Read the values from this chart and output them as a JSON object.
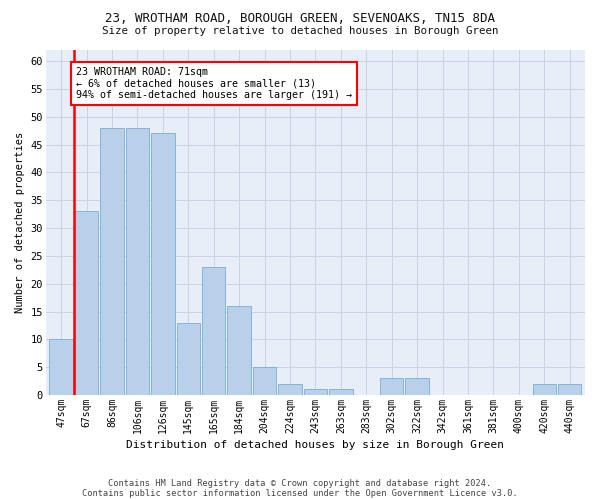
{
  "title": "23, WROTHAM ROAD, BOROUGH GREEN, SEVENOAKS, TN15 8DA",
  "subtitle": "Size of property relative to detached houses in Borough Green",
  "xlabel": "Distribution of detached houses by size in Borough Green",
  "ylabel": "Number of detached properties",
  "bar_color": "#b8d0ea",
  "bar_edge_color": "#7aaed4",
  "categories": [
    "47sqm",
    "67sqm",
    "86sqm",
    "106sqm",
    "126sqm",
    "145sqm",
    "165sqm",
    "184sqm",
    "204sqm",
    "224sqm",
    "243sqm",
    "263sqm",
    "283sqm",
    "302sqm",
    "322sqm",
    "342sqm",
    "361sqm",
    "381sqm",
    "400sqm",
    "420sqm",
    "440sqm"
  ],
  "values": [
    10,
    33,
    48,
    48,
    47,
    13,
    23,
    16,
    5,
    2,
    1,
    1,
    0,
    3,
    3,
    0,
    0,
    0,
    0,
    2,
    2
  ],
  "ylim": [
    0,
    62
  ],
  "yticks": [
    0,
    5,
    10,
    15,
    20,
    25,
    30,
    35,
    40,
    45,
    50,
    55,
    60
  ],
  "annotation_text": "23 WROTHAM ROAD: 71sqm\n← 6% of detached houses are smaller (13)\n94% of semi-detached houses are larger (191) →",
  "ref_line_x": 0.5,
  "background_color": "#e8eef7",
  "grid_color": "#c8d4e4",
  "fig_bg": "#ffffff",
  "footer_line1": "Contains HM Land Registry data © Crown copyright and database right 2024.",
  "footer_line2": "Contains public sector information licensed under the Open Government Licence v3.0."
}
